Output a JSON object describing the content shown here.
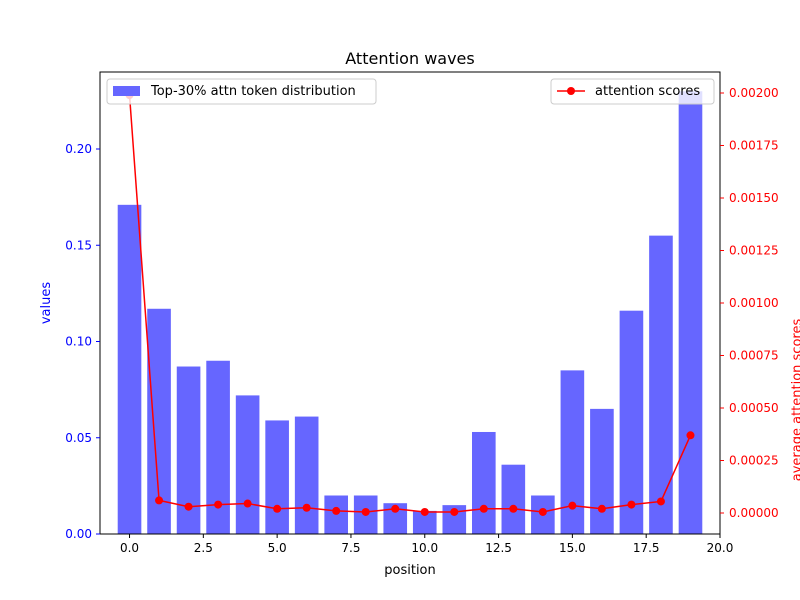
{
  "chart_data": {
    "type": "bar",
    "title": "Attention waves",
    "xlabel": "position",
    "ylabel_left": "values",
    "ylabel_right": "average attention scores",
    "xlim": [
      -1.0,
      20.0
    ],
    "ylim_left": [
      0.0,
      0.24
    ],
    "ylim_right": [
      -0.0001,
      0.0021
    ],
    "x_ticks": [
      0.0,
      2.5,
      5.0,
      7.5,
      10.0,
      12.5,
      15.0,
      17.5,
      20.0
    ],
    "x_tick_labels": [
      "0.0",
      "2.5",
      "5.0",
      "7.5",
      "10.0",
      "12.5",
      "15.0",
      "17.5",
      "20.0"
    ],
    "y_left_ticks": [
      0.0,
      0.05,
      0.1,
      0.15,
      0.2
    ],
    "y_left_tick_labels": [
      "0.00",
      "0.05",
      "0.10",
      "0.15",
      "0.20"
    ],
    "y_right_ticks": [
      0.0,
      0.00025,
      0.0005,
      0.00075,
      0.001,
      0.00125,
      0.0015,
      0.00175,
      0.002
    ],
    "y_right_tick_labels": [
      "0.00000",
      "0.00025",
      "0.00050",
      "0.00075",
      "0.00100",
      "0.00125",
      "0.00150",
      "0.00175",
      "0.00200"
    ],
    "bar_width": 0.8,
    "series": [
      {
        "name": "Top-30% attn token distribution",
        "kind": "bar",
        "axis": "left",
        "color": "#6666ff",
        "x": [
          0,
          1,
          2,
          3,
          4,
          5,
          6,
          7,
          8,
          9,
          10,
          11,
          12,
          13,
          14,
          15,
          16,
          17,
          18,
          19
        ],
        "values": [
          0.171,
          0.117,
          0.087,
          0.09,
          0.072,
          0.059,
          0.061,
          0.02,
          0.02,
          0.016,
          0.012,
          0.015,
          0.053,
          0.036,
          0.02,
          0.085,
          0.065,
          0.116,
          0.155,
          0.23
        ]
      },
      {
        "name": "attention scores",
        "kind": "line",
        "axis": "right",
        "color": "#ff0000",
        "x": [
          0,
          1,
          2,
          3,
          4,
          5,
          6,
          7,
          8,
          9,
          10,
          11,
          12,
          13,
          14,
          15,
          16,
          17,
          18,
          19
        ],
        "values": [
          0.00199,
          6e-05,
          3e-05,
          4e-05,
          4.5e-05,
          2e-05,
          2.5e-05,
          1e-05,
          5e-06,
          2e-05,
          5e-06,
          5e-06,
          2e-05,
          2e-05,
          5e-06,
          3.5e-05,
          2e-05,
          4e-05,
          5.5e-05,
          0.00037
        ]
      }
    ],
    "legend_left_position": "upper-left",
    "legend_right_position": "upper-right",
    "axis_colors": {
      "left": "#0000ff",
      "right": "#ff0000",
      "x": "#000000"
    }
  }
}
